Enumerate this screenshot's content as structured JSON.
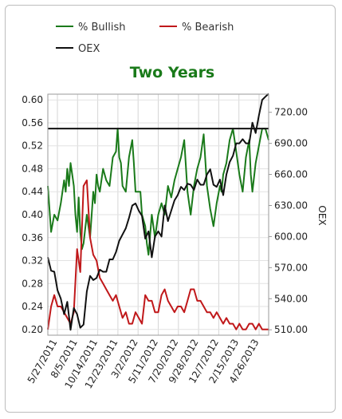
{
  "chart_data": {
    "type": "line",
    "title": "Two Years",
    "ylabel_right": "OEX",
    "x_tick_labels": [
      "5/27/2011",
      "8/5/2011",
      "10/14/2011",
      "12/23/2011",
      "3/2/2012",
      "5/11/2012",
      "7/20/2012",
      "9/28/2012",
      "12/7/2012",
      "2/15/2013",
      "4/26/2013"
    ],
    "y_left_ticks": [
      "0.60",
      "0.56",
      "0.52",
      "0.48",
      "0.44",
      "0.40",
      "0.36",
      "0.32",
      "0.28",
      "0.24",
      "0.20"
    ],
    "y_left_range": [
      0.19,
      0.61
    ],
    "y_right_ticks": [
      "720.00",
      "690.00",
      "660.00",
      "630.00",
      "600.00",
      "570.00",
      "540.00",
      "510.00"
    ],
    "y_right_range": [
      504.77,
      737.49
    ],
    "legend": [
      {
        "name": "% Bullish",
        "color": "#1a7a1a"
      },
      {
        "name": "% Bearish",
        "color": "#c0181a"
      },
      {
        "name": "OEX",
        "color": "#111111"
      }
    ],
    "reference_line": {
      "axis": "left",
      "value": 0.55,
      "color": "#111111"
    },
    "series": [
      {
        "name": "% Bullish",
        "axis": "left",
        "color": "#1a7a1a",
        "x": [
          0,
          2,
          4,
          6,
          8,
          10,
          11,
          12,
          13,
          14,
          15,
          16,
          17,
          18,
          19,
          20,
          21,
          22,
          24,
          26,
          28,
          29,
          30,
          31,
          32,
          34,
          36,
          38,
          40,
          42,
          43,
          44,
          45,
          46,
          48,
          50,
          52,
          53,
          54,
          56,
          57,
          58,
          60,
          61,
          62,
          64,
          66,
          68,
          70,
          72,
          74,
          76,
          78,
          80,
          82,
          84,
          86,
          88,
          90,
          92,
          94,
          96,
          98,
          100,
          102,
          104,
          106,
          107,
          108,
          110,
          112,
          114,
          116,
          118,
          120,
          122,
          124,
          125,
          126,
          128,
          130,
          132,
          134,
          136
        ],
        "values": [
          0.45,
          0.37,
          0.4,
          0.39,
          0.42,
          0.46,
          0.44,
          0.48,
          0.45,
          0.49,
          0.47,
          0.45,
          0.4,
          0.37,
          0.43,
          0.37,
          0.34,
          0.35,
          0.4,
          0.36,
          0.44,
          0.42,
          0.47,
          0.45,
          0.44,
          0.48,
          0.46,
          0.45,
          0.5,
          0.51,
          0.55,
          0.5,
          0.49,
          0.45,
          0.44,
          0.5,
          0.53,
          0.49,
          0.44,
          0.44,
          0.44,
          0.4,
          0.38,
          0.35,
          0.33,
          0.4,
          0.36,
          0.4,
          0.42,
          0.4,
          0.45,
          0.43,
          0.46,
          0.48,
          0.5,
          0.53,
          0.44,
          0.4,
          0.45,
          0.48,
          0.5,
          0.54,
          0.45,
          0.41,
          0.38,
          0.42,
          0.45,
          0.44,
          0.47,
          0.49,
          0.53,
          0.55,
          0.51,
          0.47,
          0.44,
          0.5,
          0.53,
          0.47,
          0.44,
          0.49,
          0.52,
          0.55,
          0.55,
          0.53
        ]
      },
      {
        "name": "% Bearish",
        "axis": "left",
        "color": "#c0181a",
        "x": [
          0,
          2,
          4,
          6,
          8,
          10,
          12,
          14,
          16,
          18,
          20,
          22,
          24,
          26,
          28,
          30,
          32,
          34,
          36,
          38,
          40,
          42,
          44,
          46,
          48,
          50,
          52,
          54,
          56,
          58,
          60,
          62,
          64,
          66,
          68,
          70,
          72,
          74,
          76,
          78,
          80,
          82,
          84,
          86,
          88,
          90,
          92,
          94,
          96,
          98,
          100,
          102,
          104,
          106,
          108,
          110,
          112,
          114,
          116,
          118,
          120,
          122,
          124,
          126,
          128,
          130,
          132,
          134,
          136
        ],
        "values": [
          0.2,
          0.24,
          0.26,
          0.24,
          0.24,
          0.23,
          0.22,
          0.21,
          0.23,
          0.34,
          0.3,
          0.45,
          0.46,
          0.36,
          0.33,
          0.32,
          0.29,
          0.28,
          0.27,
          0.26,
          0.25,
          0.26,
          0.24,
          0.22,
          0.23,
          0.21,
          0.21,
          0.23,
          0.22,
          0.21,
          0.26,
          0.25,
          0.25,
          0.23,
          0.23,
          0.26,
          0.27,
          0.25,
          0.24,
          0.23,
          0.24,
          0.24,
          0.23,
          0.25,
          0.27,
          0.27,
          0.25,
          0.25,
          0.24,
          0.23,
          0.23,
          0.22,
          0.23,
          0.22,
          0.21,
          0.22,
          0.21,
          0.21,
          0.2,
          0.21,
          0.2,
          0.2,
          0.21,
          0.21,
          0.2,
          0.21,
          0.2,
          0.2,
          0.2
        ]
      },
      {
        "name": "OEX",
        "axis": "right",
        "color": "#111111",
        "x": [
          0,
          2,
          4,
          6,
          8,
          10,
          12,
          14,
          16,
          18,
          20,
          22,
          24,
          26,
          28,
          30,
          32,
          34,
          36,
          38,
          40,
          42,
          44,
          46,
          48,
          50,
          52,
          54,
          56,
          58,
          60,
          62,
          64,
          66,
          68,
          70,
          72,
          74,
          76,
          78,
          80,
          82,
          84,
          86,
          88,
          90,
          92,
          94,
          96,
          98,
          100,
          102,
          104,
          106,
          108,
          110,
          112,
          114,
          116,
          118,
          120,
          122,
          124,
          126,
          128,
          130,
          132,
          134,
          136
        ],
        "values": [
          580,
          567,
          566,
          548,
          540,
          525,
          537,
          510,
          531,
          525,
          512,
          515,
          547,
          562,
          558,
          560,
          568,
          566,
          566,
          578,
          578,
          585,
          596,
          602,
          608,
          618,
          630,
          632,
          625,
          620,
          598,
          605,
          580,
          600,
          605,
          600,
          630,
          615,
          625,
          635,
          640,
          648,
          645,
          651,
          650,
          645,
          655,
          650,
          650,
          660,
          665,
          650,
          648,
          655,
          640,
          660,
          672,
          678,
          690,
          690,
          694,
          690,
          690,
          710,
          700,
          717,
          732,
          735,
          738
        ]
      }
    ]
  }
}
